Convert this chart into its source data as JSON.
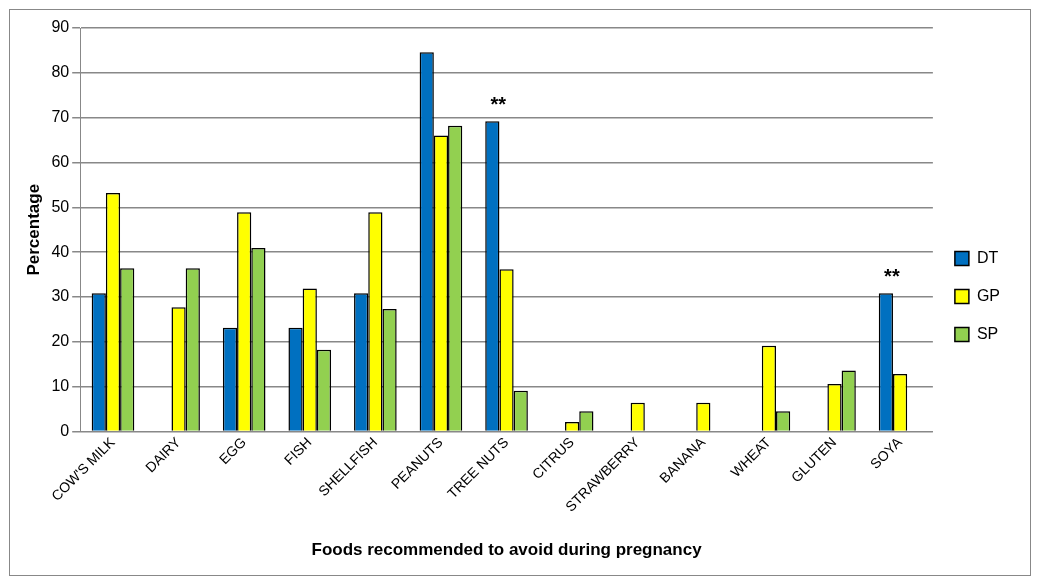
{
  "chart_data": {
    "type": "bar",
    "xlabel": "Foods recommended to avoid during pregnancy",
    "ylabel": "Percentage",
    "categories": [
      "COW'S MILK",
      "DAIRY",
      "EGG",
      "FISH",
      "SHELLFISH",
      "PEANUTS",
      "TREE NUTS",
      "CITRUS",
      "STRAWBERRY",
      "BANANA",
      "WHEAT",
      "GLUTEN",
      "SOYA"
    ],
    "series": [
      {
        "name": "DT",
        "color": "#0070c0",
        "values": [
          30.8,
          null,
          23.1,
          23.1,
          30.8,
          84.6,
          69.2,
          null,
          null,
          null,
          null,
          null,
          30.8
        ],
        "value_labels": [
          null,
          null,
          null,
          null,
          null,
          null,
          "**",
          null,
          null,
          null,
          null,
          null,
          "**"
        ]
      },
      {
        "name": "GP",
        "color": "#ffff00",
        "values": [
          53.2,
          27.7,
          48.9,
          31.9,
          48.9,
          66,
          36.2,
          2.1,
          6.4,
          6.4,
          19.1,
          10.6,
          12.8
        ]
      },
      {
        "name": "SP",
        "color": "#92d050",
        "values": [
          36.4,
          36.4,
          40.9,
          18.2,
          27.3,
          68.2,
          9.1,
          4.5,
          null,
          null,
          4.5,
          13.6,
          null
        ]
      }
    ],
    "ylim": [
      0,
      90
    ],
    "yticks": [
      0,
      10,
      20,
      30,
      40,
      50,
      60,
      70,
      80,
      90
    ],
    "grid": "y",
    "legend": "right"
  }
}
